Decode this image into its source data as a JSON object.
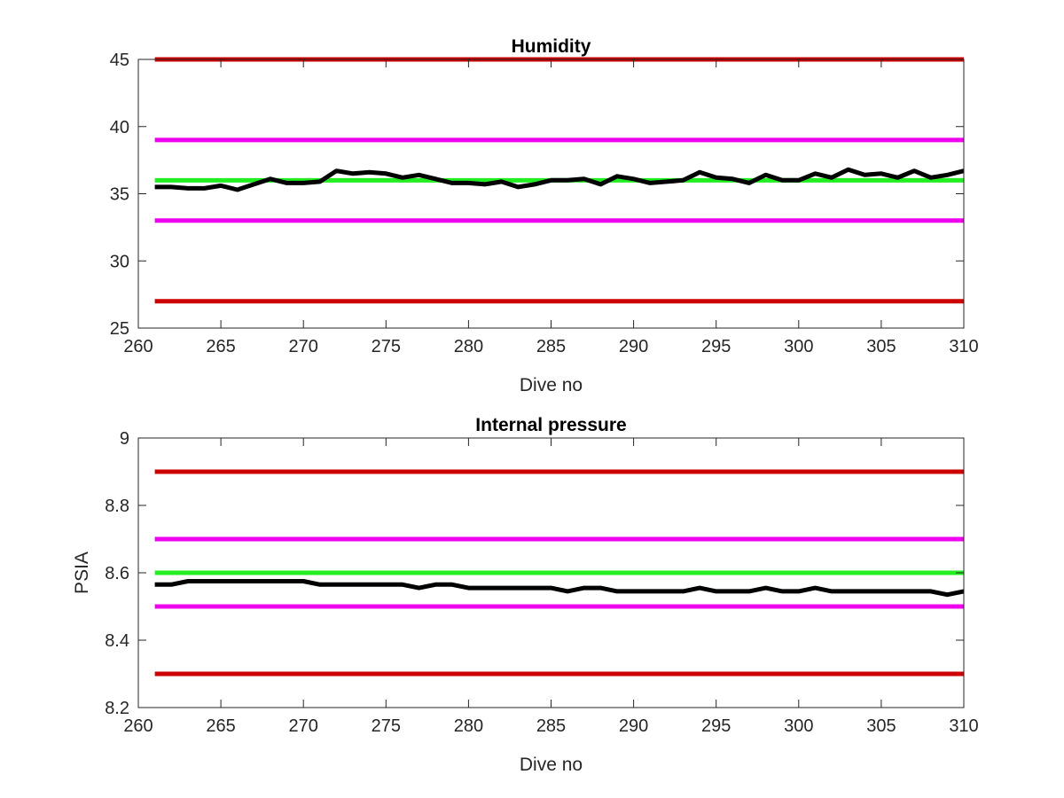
{
  "chart_data": [
    {
      "type": "line",
      "title": "Humidity",
      "xlabel": "Dive no",
      "ylabel": "",
      "xlim": [
        260,
        310
      ],
      "ylim": [
        25,
        45
      ],
      "xticks": [
        260,
        265,
        270,
        275,
        280,
        285,
        290,
        295,
        300,
        305,
        310
      ],
      "yticks": [
        25,
        30,
        35,
        40,
        45
      ],
      "xtick_labels": [
        "260",
        "265",
        "270",
        "275",
        "280",
        "285",
        "290",
        "295",
        "300",
        "305",
        "310"
      ],
      "ytick_labels": [
        "25",
        "30",
        "35",
        "40",
        "45"
      ],
      "grid": false,
      "threshold_lines": [
        {
          "value": 45,
          "color": "#cc0000"
        },
        {
          "value": 39,
          "color": "#ee00ee"
        },
        {
          "value": 36,
          "color": "#22ee22"
        },
        {
          "value": 33,
          "color": "#ee00ee"
        },
        {
          "value": 27,
          "color": "#cc0000"
        }
      ],
      "series": [
        {
          "color": "#000000",
          "x": [
            261,
            262,
            263,
            264,
            265,
            266,
            267,
            268,
            269,
            270,
            271,
            272,
            273,
            274,
            275,
            276,
            277,
            278,
            279,
            280,
            281,
            282,
            283,
            284,
            285,
            286,
            287,
            288,
            289,
            290,
            291,
            292,
            293,
            294,
            295,
            296,
            297,
            298,
            299,
            300,
            301,
            302,
            303,
            304,
            305,
            306,
            307,
            308,
            309,
            310
          ],
          "y": [
            35.5,
            35.5,
            35.4,
            35.4,
            35.6,
            35.3,
            35.7,
            36.1,
            35.8,
            35.8,
            35.9,
            36.7,
            36.5,
            36.6,
            36.5,
            36.2,
            36.4,
            36.1,
            35.8,
            35.8,
            35.7,
            35.9,
            35.5,
            35.7,
            36.0,
            36.0,
            36.1,
            35.7,
            36.3,
            36.1,
            35.8,
            35.9,
            36.0,
            36.6,
            36.2,
            36.1,
            35.8,
            36.4,
            36.0,
            36.0,
            36.5,
            36.2,
            36.8,
            36.4,
            36.5,
            36.2,
            36.7,
            36.2,
            36.4,
            36.7
          ]
        }
      ]
    },
    {
      "type": "line",
      "title": "Internal pressure",
      "xlabel": "Dive no",
      "ylabel": "PSIA",
      "xlim": [
        260,
        310
      ],
      "ylim": [
        8.2,
        9.0
      ],
      "xticks": [
        260,
        265,
        270,
        275,
        280,
        285,
        290,
        295,
        300,
        305,
        310
      ],
      "yticks": [
        8.2,
        8.4,
        8.6,
        8.8,
        9.0
      ],
      "xtick_labels": [
        "260",
        "265",
        "270",
        "275",
        "280",
        "285",
        "290",
        "295",
        "300",
        "305",
        "310"
      ],
      "ytick_labels": [
        "8.2",
        "8.4",
        "8.6",
        "8.8",
        "9"
      ],
      "grid": false,
      "threshold_lines": [
        {
          "value": 8.9,
          "color": "#cc0000"
        },
        {
          "value": 8.7,
          "color": "#ee00ee"
        },
        {
          "value": 8.6,
          "color": "#22ee22"
        },
        {
          "value": 8.5,
          "color": "#ee00ee"
        },
        {
          "value": 8.3,
          "color": "#cc0000"
        }
      ],
      "series": [
        {
          "color": "#000000",
          "x": [
            261,
            262,
            263,
            264,
            265,
            266,
            267,
            268,
            269,
            270,
            271,
            272,
            273,
            274,
            275,
            276,
            277,
            278,
            279,
            280,
            281,
            282,
            283,
            284,
            285,
            286,
            287,
            288,
            289,
            290,
            291,
            292,
            293,
            294,
            295,
            296,
            297,
            298,
            299,
            300,
            301,
            302,
            303,
            304,
            305,
            306,
            307,
            308,
            309,
            310
          ],
          "y": [
            8.565,
            8.565,
            8.575,
            8.575,
            8.575,
            8.575,
            8.575,
            8.575,
            8.575,
            8.575,
            8.565,
            8.565,
            8.565,
            8.565,
            8.565,
            8.565,
            8.555,
            8.565,
            8.565,
            8.555,
            8.555,
            8.555,
            8.555,
            8.555,
            8.555,
            8.545,
            8.555,
            8.555,
            8.545,
            8.545,
            8.545,
            8.545,
            8.545,
            8.555,
            8.545,
            8.545,
            8.545,
            8.555,
            8.545,
            8.545,
            8.555,
            8.545,
            8.545,
            8.545,
            8.545,
            8.545,
            8.545,
            8.545,
            8.535,
            8.545
          ]
        }
      ]
    }
  ]
}
